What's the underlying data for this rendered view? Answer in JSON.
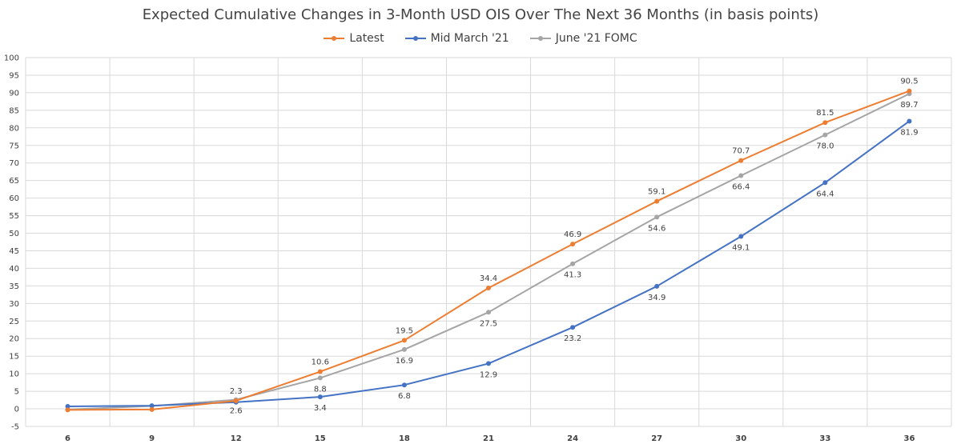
{
  "title": "Expected Cumulative Changes in 3-Month USD OIS Over The Next 36 Months (in basis points)",
  "chart_data": {
    "type": "line",
    "title": "Expected Cumulative Changes in 3-Month USD OIS Over The Next 36 Months (in basis points)",
    "xlabel": "",
    "ylabel": "",
    "categories": [
      "6",
      "9",
      "12",
      "15",
      "18",
      "21",
      "24",
      "27",
      "30",
      "33",
      "36"
    ],
    "ylim": [
      -5,
      100
    ],
    "yticks": [
      -5,
      0,
      5,
      10,
      15,
      20,
      25,
      30,
      35,
      40,
      45,
      50,
      55,
      60,
      65,
      70,
      75,
      80,
      85,
      90,
      95,
      100
    ],
    "grid": true,
    "legend_position": "top",
    "series": [
      {
        "name": "Latest",
        "color": "#ED7D31",
        "values": [
          -0.3,
          -0.2,
          2.3,
          10.6,
          19.5,
          34.4,
          46.9,
          59.1,
          70.7,
          81.5,
          90.5
        ],
        "labels": [
          "",
          "",
          "2.3",
          "10.6",
          "19.5",
          "34.4",
          "46.9",
          "59.1",
          "70.7",
          "81.5",
          "90.5"
        ],
        "label_position": "above"
      },
      {
        "name": "Mid March '21",
        "color": "#4472C4",
        "values": [
          0.7,
          0.9,
          1.9,
          3.4,
          6.8,
          12.9,
          23.2,
          34.9,
          49.1,
          64.4,
          81.9
        ],
        "labels": [
          "",
          "",
          "",
          "3.4",
          "6.8",
          "12.9",
          "23.2",
          "34.9",
          "49.1",
          "64.4",
          "81.9"
        ],
        "label_position": "below"
      },
      {
        "name": "June '21 FOMC",
        "color": "#A5A5A5",
        "values": [
          -0.2,
          0.8,
          2.6,
          8.8,
          16.9,
          27.5,
          41.3,
          54.6,
          66.4,
          78.0,
          89.7
        ],
        "labels": [
          "",
          "",
          "2.6",
          "8.8",
          "16.9",
          "27.5",
          "41.3",
          "54.6",
          "66.4",
          "78.0",
          "89.7"
        ],
        "label_position": "below"
      }
    ]
  }
}
